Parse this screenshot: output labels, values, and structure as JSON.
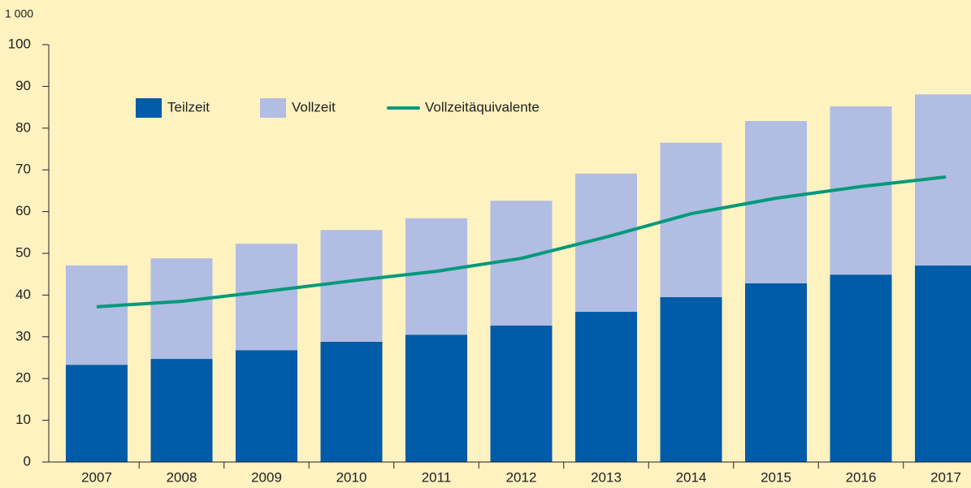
{
  "chart_data": {
    "type": "bar",
    "stacked": true,
    "ylabel": "1 000",
    "categories": [
      "2007",
      "2008",
      "2009",
      "2010",
      "2011",
      "2012",
      "2013",
      "2014",
      "2015",
      "2016",
      "2017"
    ],
    "series": [
      {
        "name": "Teilzeit",
        "color": "#005ba8",
        "values": [
          23.3,
          24.7,
          26.8,
          28.8,
          30.5,
          32.7,
          36.0,
          39.5,
          42.8,
          44.9,
          47.1
        ]
      },
      {
        "name": "Vollzeit",
        "color": "#b1bde3",
        "values": [
          23.8,
          24.1,
          25.5,
          26.8,
          27.9,
          29.9,
          33.1,
          37.0,
          38.9,
          40.3,
          41.0
        ]
      },
      {
        "name": "Vollzeitäquivalente",
        "type": "line",
        "color": "#00997a",
        "values": [
          37.2,
          38.5,
          40.9,
          43.4,
          45.7,
          48.8,
          53.9,
          59.5,
          63.2,
          66.0,
          68.3
        ]
      }
    ],
    "ylim": [
      0,
      100
    ],
    "yticks": [
      0,
      10,
      20,
      30,
      40,
      50,
      60,
      70,
      80,
      90,
      100
    ]
  }
}
